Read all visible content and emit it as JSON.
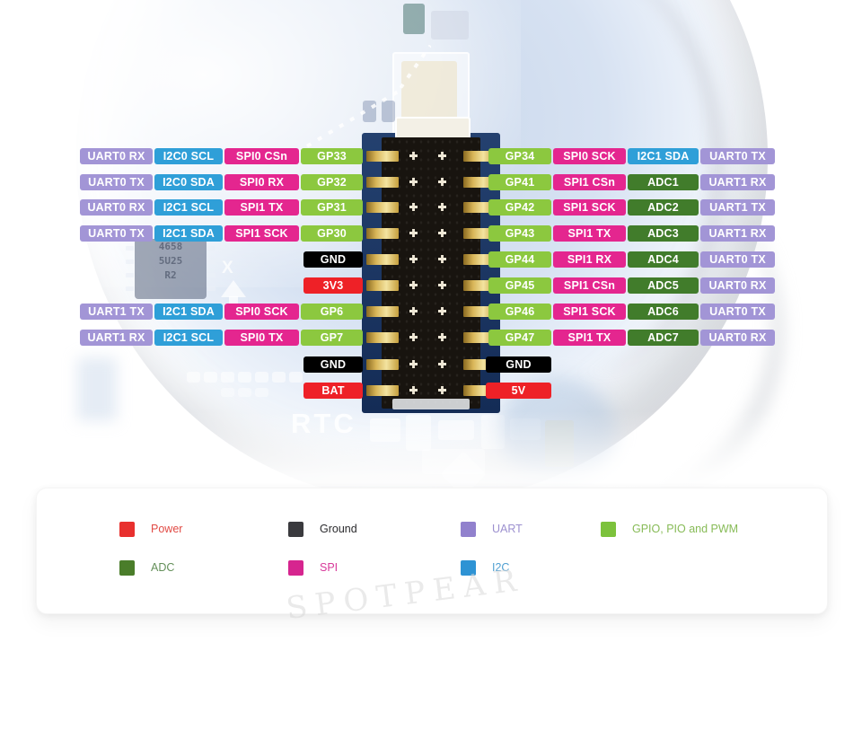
{
  "colors": {
    "pin_types": {
      "uart": "#a295d6",
      "i2c": "#2f9fd8",
      "spi": "#e4268f",
      "gpio": "#8cc83f",
      "adc": "#417c2b",
      "ground": "#000000",
      "power": "#ee2127"
    }
  },
  "pinout": {
    "left_rows": [
      {
        "cells": [
          {
            "type": "uart",
            "label": "UART0 RX"
          },
          {
            "type": "i2c",
            "label": "I2C0 SCL"
          },
          {
            "type": "spi",
            "label": "SPI0 CSn"
          },
          {
            "type": "gpio",
            "label": "GP33"
          }
        ]
      },
      {
        "cells": [
          {
            "type": "uart",
            "label": "UART0 TX"
          },
          {
            "type": "i2c",
            "label": "I2C0 SDA"
          },
          {
            "type": "spi",
            "label": "SPI0 RX"
          },
          {
            "type": "gpio",
            "label": "GP32"
          }
        ]
      },
      {
        "cells": [
          {
            "type": "uart",
            "label": "UART0 RX"
          },
          {
            "type": "i2c",
            "label": "I2C1 SCL"
          },
          {
            "type": "spi",
            "label": "SPI1 TX"
          },
          {
            "type": "gpio",
            "label": "GP31"
          }
        ]
      },
      {
        "cells": [
          {
            "type": "uart",
            "label": "UART0 TX"
          },
          {
            "type": "i2c",
            "label": "I2C1 SDA"
          },
          {
            "type": "spi",
            "label": "SPI1 SCK"
          },
          {
            "type": "gpio",
            "label": "GP30"
          }
        ]
      },
      {
        "cells": [
          {
            "type": "ground",
            "label": "GND"
          }
        ]
      },
      {
        "cells": [
          {
            "type": "power",
            "label": "3V3"
          }
        ]
      },
      {
        "cells": [
          {
            "type": "uart",
            "label": "UART1 TX"
          },
          {
            "type": "i2c",
            "label": "I2C1 SDA"
          },
          {
            "type": "spi",
            "label": "SPI0 SCK"
          },
          {
            "type": "gpio",
            "label": "GP6"
          }
        ]
      },
      {
        "cells": [
          {
            "type": "uart",
            "label": "UART1 RX"
          },
          {
            "type": "i2c",
            "label": "I2C1 SCL"
          },
          {
            "type": "spi",
            "label": "SPI0 TX"
          },
          {
            "type": "gpio",
            "label": "GP7"
          }
        ]
      },
      {
        "cells": [
          {
            "type": "ground",
            "label": "GND"
          }
        ]
      },
      {
        "cells": [
          {
            "type": "power",
            "label": "BAT"
          }
        ]
      }
    ],
    "right_rows": [
      {
        "cells": [
          {
            "type": "gpio",
            "label": "GP34"
          },
          {
            "type": "spi",
            "label": "SPI0 SCK"
          },
          {
            "type": "i2c",
            "label": "I2C1 SDA"
          },
          {
            "type": "uart",
            "label": "UART0 TX"
          }
        ]
      },
      {
        "cells": [
          {
            "type": "gpio",
            "label": "GP41"
          },
          {
            "type": "spi",
            "label": "SPI1 CSn"
          },
          {
            "type": "adc",
            "label": "ADC1"
          },
          {
            "type": "uart",
            "label": "UART1 RX"
          }
        ]
      },
      {
        "cells": [
          {
            "type": "gpio",
            "label": "GP42"
          },
          {
            "type": "spi",
            "label": "SPI1 SCK"
          },
          {
            "type": "adc",
            "label": "ADC2"
          },
          {
            "type": "uart",
            "label": "UART1 TX"
          }
        ]
      },
      {
        "cells": [
          {
            "type": "gpio",
            "label": "GP43"
          },
          {
            "type": "spi",
            "label": "SPI1 TX"
          },
          {
            "type": "adc",
            "label": "ADC3"
          },
          {
            "type": "uart",
            "label": "UART1 RX"
          }
        ]
      },
      {
        "cells": [
          {
            "type": "gpio",
            "label": "GP44"
          },
          {
            "type": "spi",
            "label": "SPI1 RX"
          },
          {
            "type": "adc",
            "label": "ADC4"
          },
          {
            "type": "uart",
            "label": "UART0 TX"
          }
        ]
      },
      {
        "cells": [
          {
            "type": "gpio",
            "label": "GP45"
          },
          {
            "type": "spi",
            "label": "SPI1 CSn"
          },
          {
            "type": "adc",
            "label": "ADC5"
          },
          {
            "type": "uart",
            "label": "UART0 RX"
          }
        ]
      },
      {
        "cells": [
          {
            "type": "gpio",
            "label": "GP46"
          },
          {
            "type": "spi",
            "label": "SPI1 SCK"
          },
          {
            "type": "adc",
            "label": "ADC6"
          },
          {
            "type": "uart",
            "label": "UART0 TX"
          }
        ]
      },
      {
        "cells": [
          {
            "type": "gpio",
            "label": "GP47"
          },
          {
            "type": "spi",
            "label": "SPI1 TX"
          },
          {
            "type": "adc",
            "label": "ADC7"
          },
          {
            "type": "uart",
            "label": "UART0 RX"
          }
        ]
      },
      {
        "cells": [
          {
            "type": "ground",
            "label": "GND"
          }
        ]
      },
      {
        "cells": [
          {
            "type": "power",
            "label": "5V"
          }
        ]
      }
    ]
  },
  "board": {
    "silkscreen_label": "RTC",
    "orientation_marker": "X",
    "chip_text": [
      "4658",
      "5U25",
      "R2"
    ]
  },
  "legend": {
    "items": [
      {
        "label": "Power",
        "swatch": "#e8302e",
        "text_color": "#e14a44"
      },
      {
        "label": "Ground",
        "swatch": "#3a3a3e",
        "text_color": "#2b2b2e"
      },
      {
        "label": "UART",
        "swatch": "#9181cd",
        "text_color": "#9c90cf"
      },
      {
        "label": "GPIO, PIO and PWM",
        "swatch": "#7cc23c",
        "text_color": "#87bb57"
      },
      {
        "label": "ADC",
        "swatch": "#4a7d2a",
        "text_color": "#64905a"
      },
      {
        "label": "SPI",
        "swatch": "#d6258f",
        "text_color": "#d8399a"
      },
      {
        "label": "I2C",
        "swatch": "#2e93d4",
        "text_color": "#4f9fd2"
      }
    ]
  },
  "watermark": {
    "text": "SPOTPEAR"
  }
}
